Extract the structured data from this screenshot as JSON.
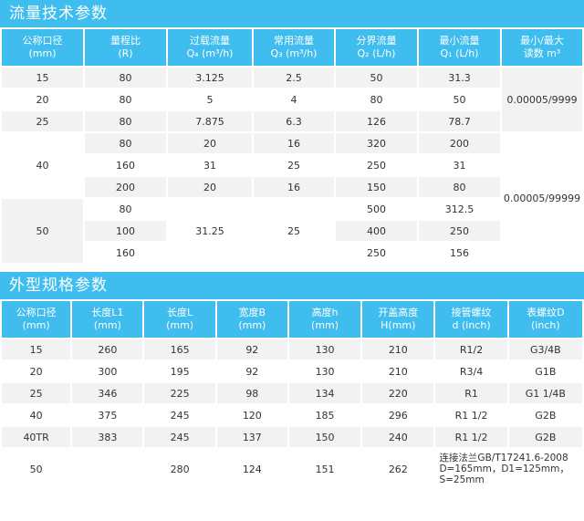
{
  "flow": {
    "title": "流量技术参数",
    "headers": [
      [
        "公称口径",
        "(mm)"
      ],
      [
        "量程比",
        "(R)"
      ],
      [
        "过载流量",
        "Q₄ (m³/h)"
      ],
      [
        "常用流量",
        "Q₃ (m³/h)"
      ],
      [
        "分界流量",
        "Q₂ (L/h)"
      ],
      [
        "最小流量",
        "Q₁ (L/h)"
      ],
      [
        "最小/最大",
        "读数 m³"
      ]
    ],
    "rows": [
      {
        "dn": "15",
        "r": "80",
        "q4": "3.125",
        "q3": "2.5",
        "q2": "50",
        "q1": "31.3"
      },
      {
        "dn": "20",
        "r": "80",
        "q4": "5",
        "q3": "4",
        "q2": "80",
        "q1": "50"
      },
      {
        "dn": "25",
        "r": "80",
        "q4": "7.875",
        "q3": "6.3",
        "q2": "126",
        "q1": "78.7"
      },
      {
        "dn": "40",
        "r": "80",
        "q4": "20",
        "q3": "16",
        "q2": "320",
        "q1": "200"
      },
      {
        "r": "160",
        "q4": "31",
        "q3": "25",
        "q2": "250",
        "q1": "31"
      },
      {
        "r": "200",
        "q4": "20",
        "q3": "16",
        "q2": "150",
        "q1": "80"
      },
      {
        "dn": "50",
        "r": "80",
        "q4": "31.25",
        "q3": "25",
        "q2": "500",
        "q1": "312.5"
      },
      {
        "r": "100",
        "q2": "400",
        "q1": "250"
      },
      {
        "r": "160",
        "q2": "250",
        "q1": "156"
      }
    ],
    "reading_small": "0.00005/9999",
    "reading_large": "0.00005/99999"
  },
  "dims": {
    "title": "外型规格参数",
    "headers": [
      [
        "公称口径",
        "(mm)"
      ],
      [
        "长度L1",
        "(mm)"
      ],
      [
        "长度L",
        "(mm)"
      ],
      [
        "宽度B",
        "(mm)"
      ],
      [
        "高度h",
        "(mm)"
      ],
      [
        "开盖高度",
        "H(mm)"
      ],
      [
        "接管螺纹",
        "d  (inch)"
      ],
      [
        "表螺纹D",
        "(inch)"
      ]
    ],
    "rows": [
      {
        "dn": "15",
        "l1": "260",
        "l": "165",
        "b": "92",
        "h": "130",
        "hh": "210",
        "d": "R1/2",
        "dd": "G3/4B"
      },
      {
        "dn": "20",
        "l1": "300",
        "l": "195",
        "b": "92",
        "h": "130",
        "hh": "210",
        "d": "R3/4",
        "dd": "G1B"
      },
      {
        "dn": "25",
        "l1": "346",
        "l": "225",
        "b": "98",
        "h": "134",
        "hh": "220",
        "d": "R1",
        "dd": "G1 1/4B"
      },
      {
        "dn": "40",
        "l1": "375",
        "l": "245",
        "b": "120",
        "h": "185",
        "hh": "296",
        "d": "R1 1/2",
        "dd": "G2B"
      },
      {
        "dn": "40TR",
        "l1": "383",
        "l": "245",
        "b": "137",
        "h": "150",
        "hh": "240",
        "d": "R1 1/2",
        "dd": "G2B"
      },
      {
        "dn": "50",
        "l1": "",
        "l": "280",
        "b": "124",
        "h": "151",
        "hh": "262"
      }
    ],
    "flange_note": [
      "连接法兰GB/T17241.6-2008",
      "D=165mm，D1=125mm，",
      "S=25mm"
    ]
  }
}
